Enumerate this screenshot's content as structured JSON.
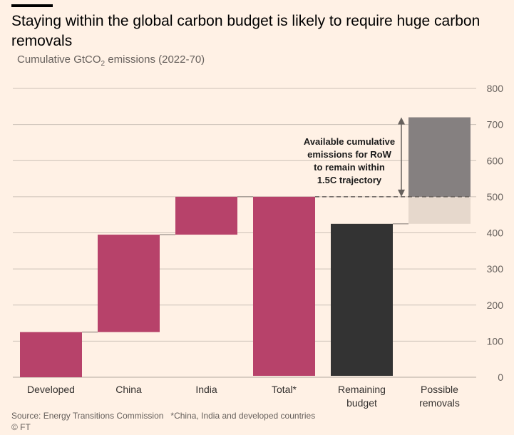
{
  "header": {
    "title": "Staying within the global carbon budget is likely to require huge carbon removals",
    "subtitle_prefix": "Cumulative GtCO",
    "subtitle_sub": "2",
    "subtitle_suffix": " emissions (2022-70)"
  },
  "chart_data": {
    "type": "bar",
    "variant": "waterfall",
    "title": "Staying within the global carbon budget is likely to require huge carbon removals",
    "ylabel": "Cumulative GtCO2 emissions (2022-70)",
    "ylim": [
      0,
      800
    ],
    "yticks": [
      0,
      100,
      200,
      300,
      400,
      500,
      600,
      700,
      800
    ],
    "categories": [
      "Developed",
      "China",
      "India",
      "Total*",
      "Remaining budget",
      "Possible removals"
    ],
    "category_labels": [
      [
        "Developed"
      ],
      [
        "China"
      ],
      [
        "India"
      ],
      [
        "Total*"
      ],
      [
        "Remaining",
        "budget"
      ],
      [
        "Possible",
        "removals"
      ]
    ],
    "bars": [
      {
        "category": "Developed",
        "start": 0,
        "end": 125,
        "color": "#b7426a"
      },
      {
        "category": "China",
        "start": 125,
        "end": 395,
        "color": "#b7426a"
      },
      {
        "category": "India",
        "start": 395,
        "end": 500,
        "color": "#b7426a"
      },
      {
        "category": "Total*",
        "start": 0,
        "end": 500,
        "color": "#b7426a"
      },
      {
        "category": "Remaining budget",
        "start": 0,
        "end": 425,
        "color": "#333333"
      },
      {
        "category": "Possible removals",
        "start": 425,
        "end": 500,
        "color": "#e6d8cc"
      },
      {
        "category": "Possible removals",
        "start": 500,
        "end": 720,
        "color": "#858080"
      }
    ],
    "reference_line": {
      "value": 500,
      "style": "dashed"
    },
    "annotation": {
      "lines": [
        "Available cumulative",
        "emissions for RoW",
        "to remain within",
        "1.5C trajectory"
      ],
      "arrow_from": 500,
      "arrow_to": 720
    },
    "grid": true,
    "y_axis_side": "right"
  },
  "footer": {
    "source": "Source: Energy Transitions Commission",
    "note": "*China, India and developed countries",
    "credit": "© FT"
  },
  "colors": {
    "background": "#fff1e5",
    "emissions": "#b7426a",
    "budget": "#333333",
    "removals_light": "#e6d8cc",
    "removals_dark": "#858080",
    "grid": "#ccc1b7"
  }
}
